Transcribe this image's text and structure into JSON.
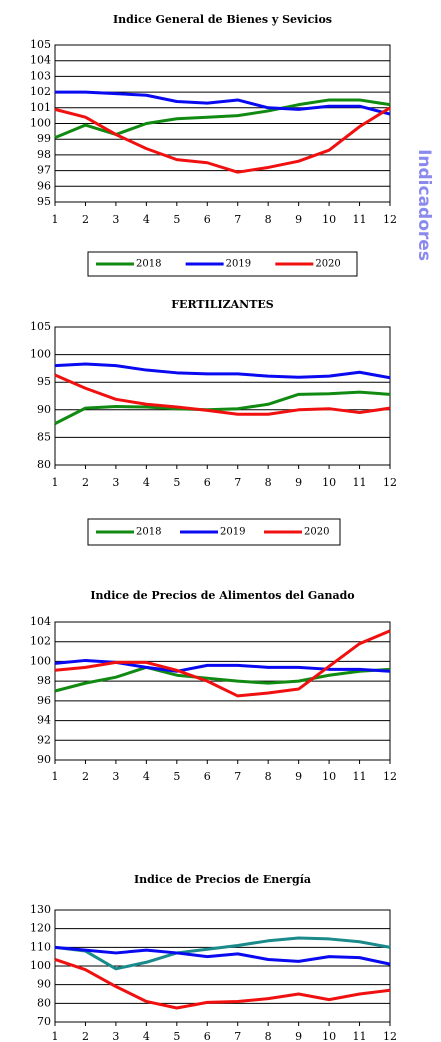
{
  "side_label": "Indicadores",
  "chart_data": [
    {
      "type": "line",
      "title": "Indice General de Bienes y Sevicios",
      "x": [
        1,
        2,
        3,
        4,
        5,
        6,
        7,
        8,
        9,
        10,
        11,
        12
      ],
      "xlim": [
        1,
        12
      ],
      "xticks": [
        1,
        2,
        3,
        4,
        5,
        6,
        7,
        8,
        9,
        10,
        11,
        12
      ],
      "ylim": [
        95,
        105
      ],
      "yticks": [
        95,
        96,
        97,
        98,
        99,
        100,
        101,
        102,
        103,
        104,
        105
      ],
      "grid": true,
      "legend": "bottom",
      "series": [
        {
          "name": "2018",
          "color": "#118a11",
          "values": [
            99.1,
            99.9,
            99.3,
            100.0,
            100.3,
            100.4,
            100.5,
            100.8,
            101.2,
            101.5,
            101.5,
            101.2
          ]
        },
        {
          "name": "2019",
          "color": "#0a0af0",
          "values": [
            102.0,
            102.0,
            101.9,
            101.8,
            101.4,
            101.3,
            101.5,
            101.0,
            100.9,
            101.1,
            101.1,
            100.6
          ]
        },
        {
          "name": "2020",
          "color": "#f01010",
          "values": [
            100.9,
            100.4,
            99.3,
            98.4,
            97.7,
            97.5,
            96.9,
            97.2,
            97.6,
            98.3,
            99.8,
            101.0
          ]
        }
      ]
    },
    {
      "type": "line",
      "title": "FERTILIZANTES",
      "x": [
        1,
        2,
        3,
        4,
        5,
        6,
        7,
        8,
        9,
        10,
        11,
        12
      ],
      "xlim": [
        1,
        12
      ],
      "xticks": [
        1,
        2,
        3,
        4,
        5,
        6,
        7,
        8,
        9,
        10,
        11,
        12
      ],
      "ylim": [
        80,
        105
      ],
      "yticks": [
        80,
        85,
        90,
        95,
        100,
        105
      ],
      "grid": true,
      "legend": "bottom",
      "series": [
        {
          "name": "2018",
          "color": "#118a11",
          "values": [
            87.5,
            90.3,
            90.6,
            90.5,
            90.2,
            90.0,
            90.2,
            91.0,
            92.8,
            92.9,
            93.2,
            92.8
          ]
        },
        {
          "name": "2019",
          "color": "#0a0af0",
          "values": [
            98.0,
            98.3,
            98.0,
            97.2,
            96.7,
            96.5,
            96.5,
            96.1,
            95.9,
            96.1,
            96.8,
            95.8
          ]
        },
        {
          "name": "2020",
          "color": "#f01010",
          "values": [
            96.3,
            93.9,
            91.9,
            91.0,
            90.5,
            89.9,
            89.2,
            89.2,
            90.0,
            90.2,
            89.5,
            90.3
          ]
        }
      ]
    },
    {
      "type": "line",
      "title": "Indice de Precios de Alimentos del Ganado",
      "x": [
        1,
        2,
        3,
        4,
        5,
        6,
        7,
        8,
        9,
        10,
        11,
        12
      ],
      "xlim": [
        1,
        12
      ],
      "xticks": [
        1,
        2,
        3,
        4,
        5,
        6,
        7,
        8,
        9,
        10,
        11,
        12
      ],
      "ylim": [
        90,
        104
      ],
      "yticks": [
        90,
        92,
        94,
        96,
        98,
        100,
        102,
        104
      ],
      "grid": true,
      "series": [
        {
          "color": "#118a11",
          "values": [
            97.0,
            97.8,
            98.4,
            99.4,
            98.6,
            98.3,
            98.0,
            97.8,
            98.0,
            98.6,
            99.0,
            99.2
          ]
        },
        {
          "color": "#0a0af0",
          "values": [
            99.8,
            100.1,
            99.9,
            99.4,
            99.0,
            99.6,
            99.6,
            99.4,
            99.4,
            99.2,
            99.2,
            99.0
          ]
        },
        {
          "color": "#f01010",
          "values": [
            99.1,
            99.4,
            99.9,
            99.9,
            99.1,
            98.0,
            96.5,
            96.8,
            97.2,
            99.5,
            101.8,
            103.1
          ]
        }
      ]
    },
    {
      "type": "line",
      "title": "Indice de Precios de Energía",
      "x": [
        1,
        2,
        3,
        4,
        5,
        6,
        7,
        8,
        9,
        10,
        11,
        12
      ],
      "xlim": [
        1,
        12
      ],
      "xticks": [
        1,
        2,
        3,
        4,
        5,
        6,
        7,
        8,
        9,
        10,
        11,
        12
      ],
      "ylim": [
        70,
        130
      ],
      "yticks": [
        70,
        80,
        90,
        100,
        110,
        120,
        130
      ],
      "grid": true,
      "series": [
        {
          "color": "#1a8a8a",
          "values": [
            110,
            108,
            98.5,
            102,
            107,
            109,
            111,
            113.5,
            115,
            114.5,
            113,
            110
          ]
        },
        {
          "color": "#0a0af0",
          "values": [
            110,
            108.5,
            107,
            108.5,
            107,
            105,
            106.5,
            103.5,
            102.5,
            105,
            104.5,
            101
          ]
        },
        {
          "color": "#f01010",
          "values": [
            103.5,
            98,
            89,
            81,
            77.5,
            80.5,
            81,
            82.5,
            85,
            82,
            85,
            87
          ]
        }
      ]
    }
  ]
}
